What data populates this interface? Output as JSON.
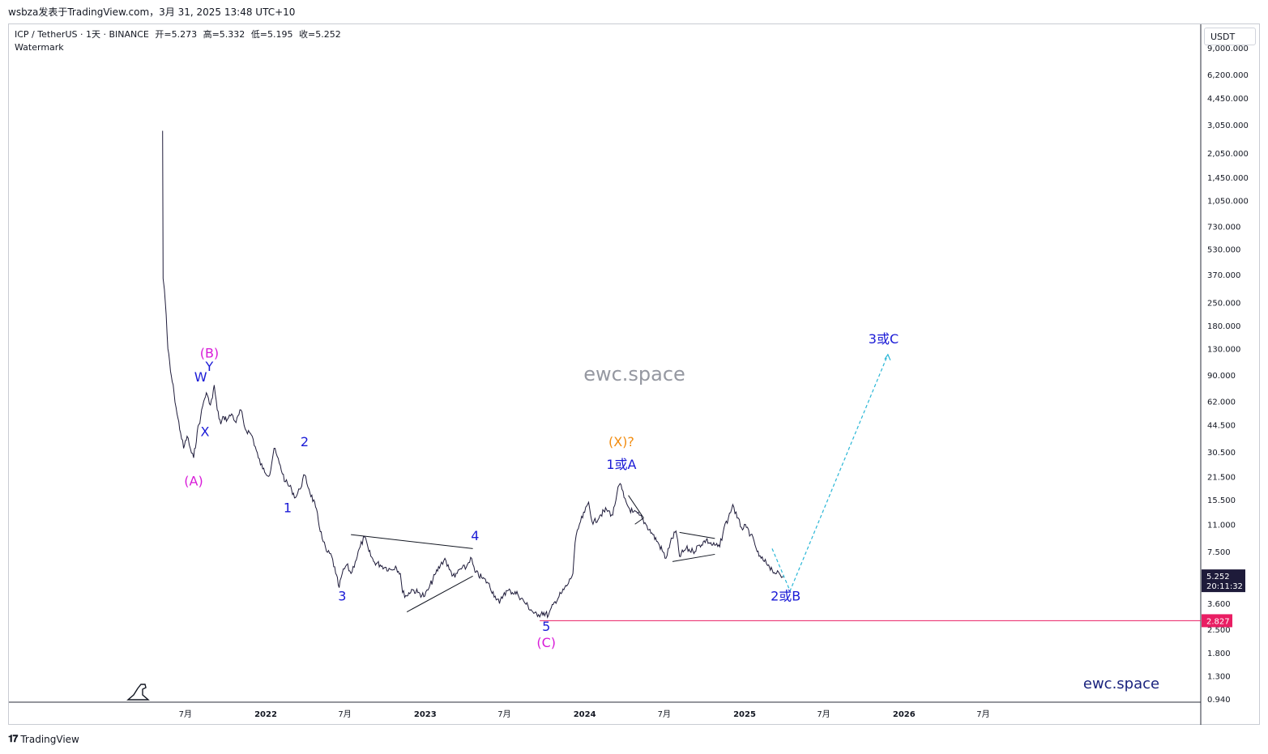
{
  "caption": "wsbza发表于TradingView.com，3月 31, 2025 13:48 UTC+10",
  "legend": {
    "symbol": "ICP / TetherUS · 1天 · BINANCE",
    "open": "开=5.273",
    "high": "高=5.332",
    "low": "低=5.195",
    "close": "收=5.252",
    "indicator": "Watermark"
  },
  "currency_button": "USDT",
  "footer_brand": "TradingView",
  "chart_data": {
    "type": "line",
    "scale": "log",
    "y_ticks": [
      {
        "v": 9000,
        "label": "9,000.000"
      },
      {
        "v": 6200,
        "label": "6,200.000"
      },
      {
        "v": 4450,
        "label": "4,450.000"
      },
      {
        "v": 3050,
        "label": "3,050.000"
      },
      {
        "v": 2050,
        "label": "2,050.000"
      },
      {
        "v": 1450,
        "label": "1,450.000"
      },
      {
        "v": 1050,
        "label": "1,050.000"
      },
      {
        "v": 730,
        "label": "730.000"
      },
      {
        "v": 530,
        "label": "530.000"
      },
      {
        "v": 370,
        "label": "370.000"
      },
      {
        "v": 250,
        "label": "250.000"
      },
      {
        "v": 180,
        "label": "180.000"
      },
      {
        "v": 130,
        "label": "130.000"
      },
      {
        "v": 90,
        "label": "90.000"
      },
      {
        "v": 62,
        "label": "62.000"
      },
      {
        "v": 44.5,
        "label": "44.500"
      },
      {
        "v": 30.5,
        "label": "30.500"
      },
      {
        "v": 21.5,
        "label": "21.500"
      },
      {
        "v": 15.5,
        "label": "15.500"
      },
      {
        "v": 11,
        "label": "11.000"
      },
      {
        "v": 7.5,
        "label": "7.500"
      },
      {
        "v": 3.6,
        "label": "3.600"
      },
      {
        "v": 2.5,
        "label": "2.500"
      },
      {
        "v": 1.8,
        "label": "1.800"
      },
      {
        "v": 1.3,
        "label": "1.300"
      },
      {
        "v": 0.94,
        "label": "0.940"
      }
    ],
    "x_ticks": [
      {
        "t": "2021-07-01",
        "label": "7月"
      },
      {
        "t": "2022-01-01",
        "label": "2022"
      },
      {
        "t": "2022-07-01",
        "label": "7月"
      },
      {
        "t": "2023-01-01",
        "label": "2023"
      },
      {
        "t": "2023-07-01",
        "label": "7月"
      },
      {
        "t": "2024-01-01",
        "label": "2024"
      },
      {
        "t": "2024-07-01",
        "label": "7月"
      },
      {
        "t": "2025-01-01",
        "label": "2025"
      },
      {
        "t": "2025-07-01",
        "label": "7月"
      },
      {
        "t": "2026-01-01",
        "label": "2026"
      },
      {
        "t": "2026-07-01",
        "label": "7月"
      }
    ],
    "series": [
      {
        "color": "#1e1b3a",
        "points": [
          [
            "2021-05-10",
            2800
          ],
          [
            "2021-05-11",
            350
          ],
          [
            "2021-05-14",
            300
          ],
          [
            "2021-05-18",
            210
          ],
          [
            "2021-05-22",
            130
          ],
          [
            "2021-05-28",
            95
          ],
          [
            "2021-06-05",
            70
          ],
          [
            "2021-06-12",
            52
          ],
          [
            "2021-06-20",
            40
          ],
          [
            "2021-06-27",
            32
          ],
          [
            "2021-07-05",
            38
          ],
          [
            "2021-07-15",
            30
          ],
          [
            "2021-07-20",
            28
          ],
          [
            "2021-07-28",
            40
          ],
          [
            "2021-08-05",
            50
          ],
          [
            "2021-08-12",
            62
          ],
          [
            "2021-08-18",
            70
          ],
          [
            "2021-08-25",
            60
          ],
          [
            "2021-09-01",
            65
          ],
          [
            "2021-09-05",
            78
          ],
          [
            "2021-09-12",
            55
          ],
          [
            "2021-09-20",
            45
          ],
          [
            "2021-09-27",
            50
          ],
          [
            "2021-10-05",
            48
          ],
          [
            "2021-10-15",
            52
          ],
          [
            "2021-10-25",
            46
          ],
          [
            "2021-11-05",
            55
          ],
          [
            "2021-11-15",
            42
          ],
          [
            "2021-11-25",
            40
          ],
          [
            "2021-12-01",
            38
          ],
          [
            "2021-12-15",
            28
          ],
          [
            "2021-12-25",
            24
          ],
          [
            "2022-01-10",
            22
          ],
          [
            "2022-01-20",
            32
          ],
          [
            "2022-02-01",
            26
          ],
          [
            "2022-02-15",
            20
          ],
          [
            "2022-03-01",
            18
          ],
          [
            "2022-03-10",
            16
          ],
          [
            "2022-03-20",
            18
          ],
          [
            "2022-03-31",
            22
          ],
          [
            "2022-04-10",
            18
          ],
          [
            "2022-04-25",
            14
          ],
          [
            "2022-05-10",
            9
          ],
          [
            "2022-05-20",
            7.5
          ],
          [
            "2022-06-01",
            7
          ],
          [
            "2022-06-10",
            5.5
          ],
          [
            "2022-06-18",
            4.5
          ],
          [
            "2022-06-25",
            5.5
          ],
          [
            "2022-07-05",
            6.2
          ],
          [
            "2022-07-15",
            5.5
          ],
          [
            "2022-07-25",
            6.5
          ],
          [
            "2022-08-05",
            8
          ],
          [
            "2022-08-15",
            9.2
          ],
          [
            "2022-08-25",
            7.5
          ],
          [
            "2022-09-05",
            6.5
          ],
          [
            "2022-09-20",
            6.2
          ],
          [
            "2022-10-01",
            6.0
          ],
          [
            "2022-10-15",
            5.8
          ],
          [
            "2022-10-25",
            6.1
          ],
          [
            "2022-11-05",
            5.5
          ],
          [
            "2022-11-10",
            4.2
          ],
          [
            "2022-11-20",
            4.0
          ],
          [
            "2022-12-01",
            4.4
          ],
          [
            "2022-12-15",
            4.2
          ],
          [
            "2022-12-31",
            4.0
          ],
          [
            "2023-01-10",
            4.5
          ],
          [
            "2023-01-25",
            5.5
          ],
          [
            "2023-02-05",
            6.2
          ],
          [
            "2023-02-15",
            6.8
          ],
          [
            "2023-02-25",
            5.8
          ],
          [
            "2023-03-10",
            5.2
          ],
          [
            "2023-03-20",
            5.8
          ],
          [
            "2023-04-05",
            6.0
          ],
          [
            "2023-04-15",
            6.9
          ],
          [
            "2023-04-25",
            5.6
          ],
          [
            "2023-05-10",
            5.2
          ],
          [
            "2023-05-25",
            4.8
          ],
          [
            "2023-06-10",
            4.0
          ],
          [
            "2023-06-20",
            3.6
          ],
          [
            "2023-07-01",
            4.2
          ],
          [
            "2023-07-15",
            4.3
          ],
          [
            "2023-08-01",
            4.1
          ],
          [
            "2023-08-15",
            3.7
          ],
          [
            "2023-08-31",
            3.3
          ],
          [
            "2023-09-15",
            3.0
          ],
          [
            "2023-09-25",
            3.2
          ],
          [
            "2023-10-10",
            3.05
          ],
          [
            "2023-10-25",
            3.7
          ],
          [
            "2023-11-10",
            4.2
          ],
          [
            "2023-11-25",
            4.8
          ],
          [
            "2023-12-05",
            5.5
          ],
          [
            "2023-12-10",
            8.5
          ],
          [
            "2023-12-20",
            11
          ],
          [
            "2024-01-01",
            13
          ],
          [
            "2024-01-10",
            15
          ],
          [
            "2024-01-20",
            11
          ],
          [
            "2024-02-05",
            12.5
          ],
          [
            "2024-02-20",
            13.5
          ],
          [
            "2024-03-05",
            12.5
          ],
          [
            "2024-03-15",
            17
          ],
          [
            "2024-03-22",
            19.5
          ],
          [
            "2024-03-31",
            16
          ],
          [
            "2024-04-10",
            14
          ],
          [
            "2024-04-20",
            13
          ],
          [
            "2024-05-05",
            12.5
          ],
          [
            "2024-05-20",
            11
          ],
          [
            "2024-06-05",
            9.5
          ],
          [
            "2024-06-20",
            8.2
          ],
          [
            "2024-07-05",
            6.8
          ],
          [
            "2024-07-15",
            8.5
          ],
          [
            "2024-07-28",
            10
          ],
          [
            "2024-08-05",
            7.0
          ],
          [
            "2024-08-20",
            7.8
          ],
          [
            "2024-09-05",
            7.5
          ],
          [
            "2024-09-20",
            8.2
          ],
          [
            "2024-10-05",
            8.8
          ],
          [
            "2024-10-20",
            8.2
          ],
          [
            "2024-11-05",
            8.0
          ],
          [
            "2024-11-15",
            10.5
          ],
          [
            "2024-11-25",
            12
          ],
          [
            "2024-12-05",
            14.5
          ],
          [
            "2024-12-15",
            12
          ],
          [
            "2024-12-25",
            10.5
          ],
          [
            "2025-01-05",
            10.5
          ],
          [
            "2025-01-15",
            9.5
          ],
          [
            "2025-01-25",
            8.2
          ],
          [
            "2025-02-03",
            7.0
          ],
          [
            "2025-02-15",
            6.5
          ],
          [
            "2025-02-25",
            6.2
          ],
          [
            "2025-03-05",
            5.8
          ],
          [
            "2025-03-15",
            5.5
          ],
          [
            "2025-03-31",
            5.252
          ]
        ]
      }
    ],
    "support_line": {
      "value": 2.827,
      "from": "2023-09-20",
      "label": "2.827",
      "color": "#e91e63"
    },
    "last_price": {
      "value": 5.252,
      "label": "5.252",
      "countdown": "20:11:32"
    },
    "trendlines": [
      {
        "from": [
          "2022-07-15",
          9.5
        ],
        "to": [
          "2023-04-20",
          7.8
        ]
      },
      {
        "from": [
          "2022-11-20",
          3.2
        ],
        "to": [
          "2023-04-20",
          5.3
        ]
      },
      {
        "from": [
          "2024-04-10",
          16.5
        ],
        "to": [
          "2024-05-15",
          12
        ]
      },
      {
        "from": [
          "2024-05-15",
          12
        ],
        "to": [
          "2024-04-25",
          11
        ]
      },
      {
        "from": [
          "2024-08-05",
          9.8
        ],
        "to": [
          "2024-10-25",
          9.0
        ]
      },
      {
        "from": [
          "2024-07-20",
          6.5
        ],
        "to": [
          "2024-10-25",
          7.2
        ]
      }
    ],
    "projection": {
      "color": "#29b6d6",
      "points": [
        [
          "2025-03-05",
          7.8
        ],
        [
          "2025-04-15",
          4.3
        ],
        [
          "2025-11-25",
          120
        ]
      ]
    },
    "annotations": [
      {
        "text": "(B)",
        "t": "2021-08-25",
        "v": 115,
        "color": "#d81bd8"
      },
      {
        "text": "W",
        "t": "2021-08-05",
        "v": 82,
        "color": "#1a1ad6"
      },
      {
        "text": "Y",
        "t": "2021-08-25",
        "v": 95,
        "color": "#1a1ad6"
      },
      {
        "text": "X",
        "t": "2021-08-15",
        "v": 38,
        "color": "#1a1ad6"
      },
      {
        "text": "(A)",
        "t": "2021-07-20",
        "v": 19,
        "color": "#d81bd8"
      },
      {
        "text": "2",
        "t": "2022-03-31",
        "v": 33,
        "color": "#1a1ad6"
      },
      {
        "text": "1",
        "t": "2022-02-20",
        "v": 13,
        "color": "#1a1ad6"
      },
      {
        "text": "3",
        "t": "2022-06-25",
        "v": 3.75,
        "color": "#1a1ad6"
      },
      {
        "text": "4",
        "t": "2023-04-25",
        "v": 8.8,
        "color": "#1a1ad6"
      },
      {
        "text": "5",
        "t": "2023-10-05",
        "v": 2.45,
        "color": "#1a1ad6"
      },
      {
        "text": "(C)",
        "t": "2023-10-05",
        "v": 1.95,
        "color": "#d81bd8"
      },
      {
        "text": "(X)?",
        "t": "2024-03-25",
        "v": 33,
        "color": "#f28c0f"
      },
      {
        "text": "1或A",
        "t": "2024-03-25",
        "v": 24,
        "color": "#1a1ad6"
      },
      {
        "text": "2或B",
        "t": "2025-04-05",
        "v": 3.75,
        "color": "#1a1ad6"
      },
      {
        "text": "3或C",
        "t": "2025-11-15",
        "v": 140,
        "color": "#1a1ad6"
      }
    ],
    "watermark_center": "ewc.space",
    "watermark_corner": "ewc.space"
  }
}
